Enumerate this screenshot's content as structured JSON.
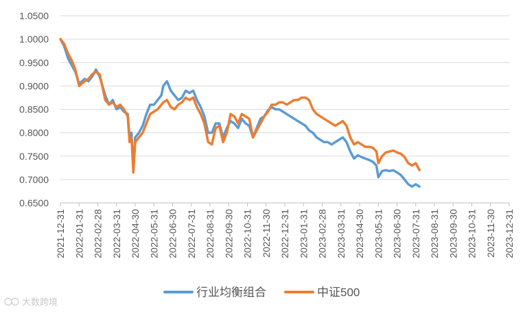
{
  "chart_data": {
    "type": "line",
    "xlabel": "",
    "ylabel": "",
    "ylim": [
      0.65,
      1.05
    ],
    "y_ticks": [
      "1.0500",
      "1.0000",
      "0.9500",
      "0.9000",
      "0.8500",
      "0.8000",
      "0.7500",
      "0.7000",
      "0.6500"
    ],
    "x_ticks": [
      "2021-12-31",
      "2022-01-31",
      "2022-02-28",
      "2022-03-31",
      "2022-04-30",
      "2022-05-31",
      "2022-06-30",
      "2022-07-31",
      "2022-08-31",
      "2022-09-30",
      "2022-10-31",
      "2022-11-30",
      "2022-12-31",
      "2023-01-31",
      "2023-02-28",
      "2023-03-31",
      "2023-04-30",
      "2023-05-31",
      "2023-06-30",
      "2023-07-31",
      "2023-08-31",
      "2023-09-30",
      "2023-10-31",
      "2023-11-30",
      "2023-12-31"
    ],
    "grid": "horizontal",
    "legend_position": "bottom",
    "series": [
      {
        "name": "行业均衡组合",
        "color": "#5b9bd5",
        "points": [
          [
            0,
            1.0
          ],
          [
            0.2,
            0.985
          ],
          [
            0.4,
            0.96
          ],
          [
            0.6,
            0.945
          ],
          [
            0.8,
            0.93
          ],
          [
            1.0,
            0.905
          ],
          [
            1.3,
            0.915
          ],
          [
            1.5,
            0.91
          ],
          [
            1.7,
            0.92
          ],
          [
            1.9,
            0.935
          ],
          [
            2.1,
            0.92
          ],
          [
            2.4,
            0.88
          ],
          [
            2.6,
            0.86
          ],
          [
            2.8,
            0.87
          ],
          [
            3.0,
            0.85
          ],
          [
            3.2,
            0.855
          ],
          [
            3.4,
            0.845
          ],
          [
            3.6,
            0.84
          ],
          [
            3.7,
            0.79
          ],
          [
            3.8,
            0.8
          ],
          [
            3.9,
            0.72
          ],
          [
            4.0,
            0.79
          ],
          [
            4.2,
            0.8
          ],
          [
            4.4,
            0.815
          ],
          [
            4.6,
            0.84
          ],
          [
            4.8,
            0.86
          ],
          [
            5.0,
            0.86
          ],
          [
            5.2,
            0.87
          ],
          [
            5.4,
            0.88
          ],
          [
            5.5,
            0.9
          ],
          [
            5.7,
            0.91
          ],
          [
            5.9,
            0.89
          ],
          [
            6.1,
            0.88
          ],
          [
            6.3,
            0.87
          ],
          [
            6.5,
            0.875
          ],
          [
            6.7,
            0.89
          ],
          [
            6.9,
            0.885
          ],
          [
            7.1,
            0.89
          ],
          [
            7.3,
            0.87
          ],
          [
            7.5,
            0.855
          ],
          [
            7.7,
            0.835
          ],
          [
            7.9,
            0.8
          ],
          [
            8.1,
            0.8
          ],
          [
            8.3,
            0.82
          ],
          [
            8.5,
            0.82
          ],
          [
            8.7,
            0.79
          ],
          [
            8.9,
            0.81
          ],
          [
            9.1,
            0.825
          ],
          [
            9.3,
            0.82
          ],
          [
            9.5,
            0.81
          ],
          [
            9.7,
            0.83
          ],
          [
            9.9,
            0.82
          ],
          [
            10.1,
            0.815
          ],
          [
            10.3,
            0.79
          ],
          [
            10.5,
            0.81
          ],
          [
            10.7,
            0.83
          ],
          [
            10.9,
            0.835
          ],
          [
            11.1,
            0.848
          ],
          [
            11.3,
            0.855
          ],
          [
            11.5,
            0.85
          ],
          [
            11.7,
            0.85
          ],
          [
            11.9,
            0.845
          ],
          [
            12.1,
            0.84
          ],
          [
            12.3,
            0.835
          ],
          [
            12.5,
            0.83
          ],
          [
            12.7,
            0.825
          ],
          [
            12.9,
            0.82
          ],
          [
            13.1,
            0.815
          ],
          [
            13.3,
            0.805
          ],
          [
            13.5,
            0.8
          ],
          [
            13.7,
            0.79
          ],
          [
            13.9,
            0.785
          ],
          [
            14.1,
            0.78
          ],
          [
            14.3,
            0.78
          ],
          [
            14.5,
            0.775
          ],
          [
            14.7,
            0.78
          ],
          [
            14.9,
            0.785
          ],
          [
            15.1,
            0.79
          ],
          [
            15.3,
            0.78
          ],
          [
            15.5,
            0.76
          ],
          [
            15.7,
            0.745
          ],
          [
            15.9,
            0.752
          ],
          [
            16.1,
            0.748
          ],
          [
            16.3,
            0.745
          ],
          [
            16.5,
            0.742
          ],
          [
            16.7,
            0.738
          ],
          [
            16.9,
            0.73
          ],
          [
            17.0,
            0.705
          ],
          [
            17.2,
            0.718
          ],
          [
            17.4,
            0.72
          ],
          [
            17.6,
            0.718
          ],
          [
            17.8,
            0.72
          ],
          [
            18.0,
            0.715
          ],
          [
            18.2,
            0.71
          ],
          [
            18.4,
            0.7
          ],
          [
            18.6,
            0.69
          ],
          [
            18.8,
            0.685
          ],
          [
            19.0,
            0.69
          ],
          [
            19.2,
            0.685
          ]
        ]
      },
      {
        "name": "中证500",
        "color": "#ed7d31",
        "points": [
          [
            0,
            1.0
          ],
          [
            0.2,
            0.99
          ],
          [
            0.4,
            0.97
          ],
          [
            0.6,
            0.955
          ],
          [
            0.8,
            0.935
          ],
          [
            1.0,
            0.9
          ],
          [
            1.3,
            0.91
          ],
          [
            1.5,
            0.915
          ],
          [
            1.7,
            0.925
          ],
          [
            1.9,
            0.93
          ],
          [
            2.1,
            0.925
          ],
          [
            2.4,
            0.87
          ],
          [
            2.6,
            0.86
          ],
          [
            2.8,
            0.865
          ],
          [
            3.0,
            0.855
          ],
          [
            3.2,
            0.86
          ],
          [
            3.4,
            0.85
          ],
          [
            3.6,
            0.835
          ],
          [
            3.7,
            0.78
          ],
          [
            3.8,
            0.79
          ],
          [
            3.9,
            0.715
          ],
          [
            4.0,
            0.78
          ],
          [
            4.2,
            0.79
          ],
          [
            4.4,
            0.8
          ],
          [
            4.6,
            0.82
          ],
          [
            4.8,
            0.84
          ],
          [
            5.0,
            0.845
          ],
          [
            5.2,
            0.85
          ],
          [
            5.4,
            0.86
          ],
          [
            5.5,
            0.865
          ],
          [
            5.7,
            0.87
          ],
          [
            5.9,
            0.855
          ],
          [
            6.1,
            0.85
          ],
          [
            6.3,
            0.86
          ],
          [
            6.5,
            0.865
          ],
          [
            6.7,
            0.875
          ],
          [
            6.9,
            0.87
          ],
          [
            7.1,
            0.875
          ],
          [
            7.3,
            0.855
          ],
          [
            7.5,
            0.84
          ],
          [
            7.7,
            0.82
          ],
          [
            7.9,
            0.78
          ],
          [
            8.1,
            0.775
          ],
          [
            8.3,
            0.81
          ],
          [
            8.5,
            0.815
          ],
          [
            8.7,
            0.78
          ],
          [
            8.9,
            0.8
          ],
          [
            9.1,
            0.84
          ],
          [
            9.3,
            0.835
          ],
          [
            9.5,
            0.82
          ],
          [
            9.7,
            0.84
          ],
          [
            9.9,
            0.835
          ],
          [
            10.1,
            0.83
          ],
          [
            10.3,
            0.79
          ],
          [
            10.5,
            0.805
          ],
          [
            10.7,
            0.82
          ],
          [
            10.9,
            0.835
          ],
          [
            11.1,
            0.845
          ],
          [
            11.3,
            0.86
          ],
          [
            11.5,
            0.86
          ],
          [
            11.7,
            0.865
          ],
          [
            11.9,
            0.865
          ],
          [
            12.1,
            0.86
          ],
          [
            12.3,
            0.865
          ],
          [
            12.5,
            0.87
          ],
          [
            12.7,
            0.87
          ],
          [
            12.9,
            0.875
          ],
          [
            13.1,
            0.875
          ],
          [
            13.3,
            0.87
          ],
          [
            13.5,
            0.85
          ],
          [
            13.7,
            0.84
          ],
          [
            13.9,
            0.835
          ],
          [
            14.1,
            0.83
          ],
          [
            14.3,
            0.825
          ],
          [
            14.5,
            0.82
          ],
          [
            14.7,
            0.815
          ],
          [
            14.9,
            0.82
          ],
          [
            15.1,
            0.825
          ],
          [
            15.3,
            0.815
          ],
          [
            15.5,
            0.79
          ],
          [
            15.7,
            0.775
          ],
          [
            15.9,
            0.78
          ],
          [
            16.1,
            0.775
          ],
          [
            16.3,
            0.77
          ],
          [
            16.5,
            0.77
          ],
          [
            16.7,
            0.768
          ],
          [
            16.9,
            0.76
          ],
          [
            17.0,
            0.735
          ],
          [
            17.2,
            0.75
          ],
          [
            17.4,
            0.758
          ],
          [
            17.6,
            0.76
          ],
          [
            17.8,
            0.762
          ],
          [
            18.0,
            0.758
          ],
          [
            18.2,
            0.755
          ],
          [
            18.4,
            0.748
          ],
          [
            18.6,
            0.735
          ],
          [
            18.8,
            0.73
          ],
          [
            19.0,
            0.735
          ],
          [
            19.2,
            0.72
          ]
        ]
      }
    ]
  },
  "watermark": "大数跨境"
}
